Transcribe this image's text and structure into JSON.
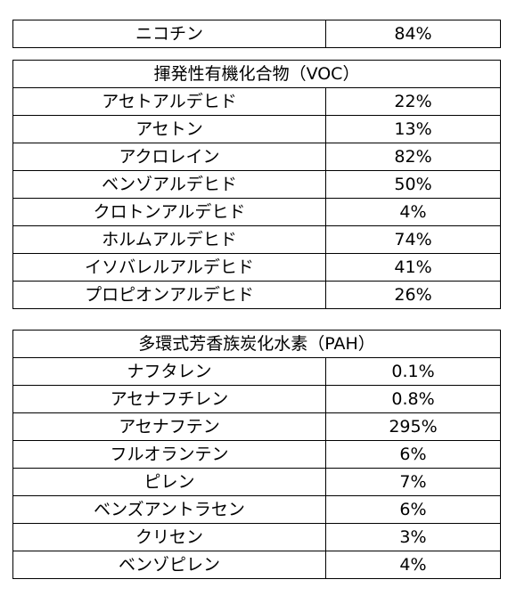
{
  "nicotine": {
    "name": "ニコチン",
    "value": "84%"
  },
  "voc": {
    "title": "揮発性有機化合物（VOC）",
    "rows": [
      {
        "name": "アセトアルデヒド",
        "value": "22%"
      },
      {
        "name": "アセトン",
        "value": "13%"
      },
      {
        "name": "アクロレイン",
        "value": "82%"
      },
      {
        "name": "ベンゾアルデヒド",
        "value": "50%"
      },
      {
        "name": "クロトンアルデヒド",
        "value": "4%"
      },
      {
        "name": "ホルムアルデヒド",
        "value": "74%"
      },
      {
        "name": "イソバレルアルデヒド",
        "value": "41%"
      },
      {
        "name": "プロピオンアルデヒド",
        "value": "26%"
      }
    ]
  },
  "pah": {
    "title": "多環式芳香族炭化水素（PAH）",
    "rows": [
      {
        "name": "ナフタレン",
        "value": "0.1%"
      },
      {
        "name": "アセナフチレン",
        "value": "0.8%"
      },
      {
        "name": "アセナフテン",
        "value": "295%"
      },
      {
        "name": "フルオランテン",
        "value": "6%"
      },
      {
        "name": "ピレン",
        "value": "7%"
      },
      {
        "name": "ベンズアントラセン",
        "value": "6%"
      },
      {
        "name": "クリセン",
        "value": "3%"
      },
      {
        "name": "ベンゾピレン",
        "value": "4%"
      }
    ]
  }
}
